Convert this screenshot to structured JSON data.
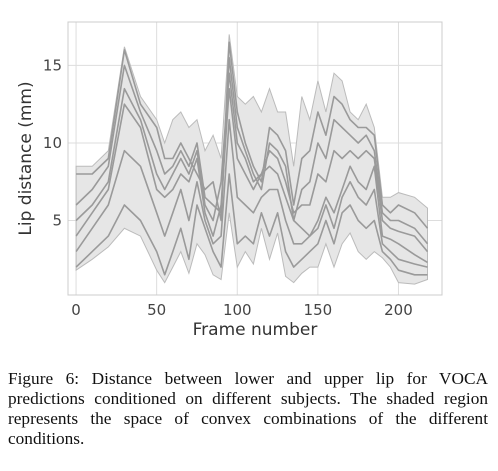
{
  "chart_data": {
    "type": "line",
    "xlabel": "Frame number",
    "ylabel": "Lip distance (mm)",
    "xlim": [
      -5,
      227
    ],
    "ylim": [
      0.2,
      17.8
    ],
    "xticks": [
      0,
      50,
      100,
      150,
      200
    ],
    "yticks": [
      5,
      10,
      15
    ],
    "grid": true,
    "shaded_region": {
      "x": [
        0,
        10,
        20,
        30,
        40,
        50,
        55,
        60,
        65,
        70,
        75,
        80,
        85,
        90,
        95,
        100,
        105,
        110,
        115,
        120,
        125,
        130,
        135,
        140,
        145,
        150,
        155,
        160,
        165,
        170,
        175,
        180,
        185,
        190,
        195,
        200,
        210,
        218
      ],
      "lower": [
        1.8,
        2.5,
        3.3,
        4.5,
        4.0,
        1.8,
        1.0,
        2.0,
        3.0,
        1.6,
        3.5,
        2.8,
        1.5,
        1.2,
        5.5,
        2.0,
        3.0,
        2.2,
        4.5,
        2.5,
        4.2,
        1.4,
        1.0,
        1.6,
        2.0,
        2.0,
        3.5,
        2.0,
        3.5,
        4.2,
        3.0,
        2.5,
        3.0,
        2.6,
        2.0,
        1.0,
        0.9,
        1.2
      ],
      "upper": [
        8.5,
        8.5,
        9.5,
        16.2,
        13.0,
        11.5,
        10.0,
        11.5,
        12.0,
        11.0,
        11.5,
        9.5,
        10.5,
        9.0,
        17.0,
        13.0,
        12.5,
        13.0,
        12.0,
        13.5,
        12.0,
        12.0,
        8.5,
        13.0,
        11.5,
        14.0,
        12.0,
        14.5,
        14.0,
        12.0,
        11.5,
        12.5,
        11.0,
        6.5,
        6.5,
        6.8,
        6.5,
        5.8
      ]
    },
    "series": [
      {
        "values": [
          4.0,
          5.5,
          7.0,
          12.5,
          11.0,
          7.0,
          6.5,
          7.0,
          8.0,
          7.5,
          9.0,
          5.5,
          4.0,
          6.0,
          13.5,
          9.0,
          8.0,
          7.0,
          8.0,
          8.5,
          8.0,
          6.5,
          5.0,
          4.5,
          4.0,
          5.0,
          6.5,
          5.5,
          7.0,
          8.5,
          7.5,
          7.0,
          8.5,
          4.0,
          3.8,
          3.5,
          2.8,
          2.3
        ]
      },
      {
        "values": [
          8.0,
          8.0,
          9.0,
          16.0,
          12.5,
          11.0,
          9.0,
          9.0,
          10.0,
          9.0,
          8.0,
          7.0,
          7.5,
          5.0,
          16.5,
          12.0,
          10.0,
          8.5,
          7.5,
          11.0,
          10.5,
          9.5,
          6.0,
          9.0,
          9.5,
          12.0,
          10.5,
          13.0,
          12.5,
          11.5,
          11.0,
          11.0,
          10.5,
          6.0,
          5.5,
          6.0,
          5.5,
          4.5
        ]
      },
      {
        "values": [
          2.0,
          3.0,
          4.0,
          6.0,
          5.0,
          3.0,
          1.5,
          3.0,
          4.5,
          2.5,
          6.0,
          4.5,
          3.0,
          2.0,
          8.0,
          3.5,
          4.0,
          3.5,
          5.5,
          4.0,
          5.5,
          3.0,
          2.0,
          2.5,
          3.0,
          3.5,
          5.0,
          3.5,
          5.5,
          6.0,
          5.0,
          4.5,
          5.0,
          3.0,
          2.5,
          1.8,
          1.5,
          1.5
        ]
      },
      {
        "values": [
          6.0,
          7.0,
          8.5,
          15.0,
          12.0,
          9.5,
          8.0,
          8.5,
          9.5,
          8.5,
          10.0,
          6.5,
          6.0,
          5.5,
          15.5,
          11.0,
          9.5,
          8.0,
          7.0,
          10.0,
          9.5,
          8.5,
          5.0,
          7.0,
          7.5,
          10.0,
          9.0,
          11.5,
          11.0,
          10.5,
          10.0,
          10.5,
          9.5,
          5.5,
          5.0,
          5.0,
          4.5,
          3.5
        ]
      },
      {
        "values": [
          3.0,
          4.5,
          6.0,
          9.5,
          8.5,
          5.5,
          4.0,
          5.5,
          7.0,
          5.0,
          7.5,
          5.0,
          3.5,
          4.0,
          11.5,
          6.5,
          6.0,
          5.5,
          6.5,
          7.0,
          7.0,
          5.0,
          3.5,
          3.5,
          4.0,
          4.5,
          6.0,
          4.5,
          6.5,
          7.5,
          6.5,
          6.0,
          7.0,
          3.5,
          3.0,
          2.5,
          2.2,
          2.0
        ]
      },
      {
        "values": [
          5.0,
          6.0,
          7.5,
          13.5,
          11.5,
          8.0,
          7.0,
          8.0,
          9.0,
          8.0,
          9.5,
          6.0,
          5.0,
          7.5,
          14.5,
          10.0,
          9.0,
          7.5,
          8.0,
          9.5,
          9.0,
          7.5,
          5.5,
          6.0,
          6.0,
          8.0,
          7.5,
          9.5,
          9.0,
          9.5,
          9.0,
          9.5,
          9.0,
          5.0,
          4.5,
          4.3,
          4.0,
          3.0
        ]
      }
    ]
  },
  "caption": "Figure 6: Distance between lower and upper lip for VOCA predictions conditioned on different subjects. The shaded region represents the space of convex combinations of the different conditions.",
  "colors": {
    "shade": "#e6e6e6",
    "shade_edge": "#bbbbbb",
    "series_line": "#9a9a9a",
    "grid": "#dddddd",
    "frame": "#cccccc"
  }
}
